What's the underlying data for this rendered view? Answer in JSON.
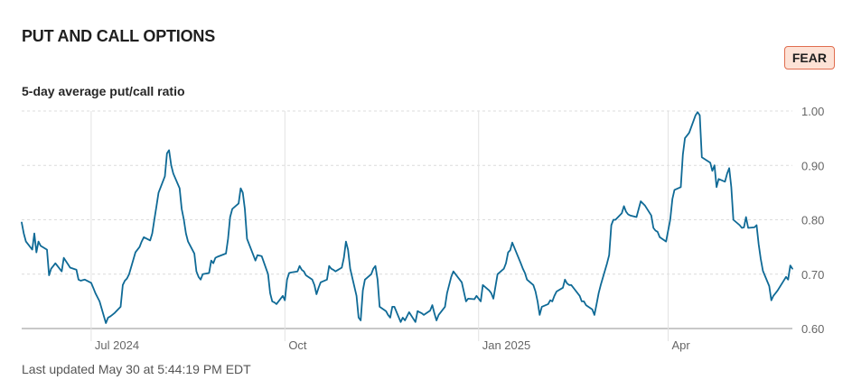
{
  "header": {
    "title": "PUT AND CALL OPTIONS",
    "badge": "FEAR",
    "badge_color": "#fde2d6",
    "badge_border": "#e06d4f"
  },
  "footer": {
    "last_updated": "Last updated May 30 at 5:44:19 PM EDT"
  },
  "chart_data": {
    "type": "line",
    "title": "5-day average put/call ratio",
    "line_color": "#0f6a96",
    "ylim": [
      0.6,
      1.0
    ],
    "yticks": [
      {
        "value": 1.0,
        "label": "1.00"
      },
      {
        "value": 0.9,
        "label": "0.90"
      },
      {
        "value": 0.8,
        "label": "0.80"
      },
      {
        "value": 0.7,
        "label": "0.70"
      },
      {
        "value": 0.6,
        "label": "0.60"
      }
    ],
    "xlim": [
      "2024-05-29",
      "2025-05-30"
    ],
    "xticks": [
      {
        "date": "2024-07-01",
        "label": "Jul 2024"
      },
      {
        "date": "2024-10-01",
        "label": "Oct"
      },
      {
        "date": "2025-01-01",
        "label": "Jan 2025"
      },
      {
        "date": "2025-04-01",
        "label": "Apr"
      }
    ],
    "grid": "horizontal dashed, vertical at month ticks",
    "series": [
      {
        "x": [
          "2024-05-29",
          "2024-05-30",
          "2024-05-31",
          "2024-06-03",
          "2024-06-04",
          "2024-06-05",
          "2024-06-06",
          "2024-06-07",
          "2024-06-10",
          "2024-06-11",
          "2024-06-12",
          "2024-06-13",
          "2024-06-14",
          "2024-06-17",
          "2024-06-18",
          "2024-06-20",
          "2024-06-21",
          "2024-06-24",
          "2024-06-25",
          "2024-06-26",
          "2024-06-27",
          "2024-06-28",
          "2024-07-01",
          "2024-07-02",
          "2024-07-03",
          "2024-07-05",
          "2024-07-08",
          "2024-07-09",
          "2024-07-10",
          "2024-07-11",
          "2024-07-12",
          "2024-07-15",
          "2024-07-16",
          "2024-07-17",
          "2024-07-18",
          "2024-07-19",
          "2024-07-22",
          "2024-07-23",
          "2024-07-24",
          "2024-07-25",
          "2024-07-26",
          "2024-07-29",
          "2024-07-30",
          "2024-07-31",
          "2024-08-01",
          "2024-08-02",
          "2024-08-05",
          "2024-08-06",
          "2024-08-07",
          "2024-08-08",
          "2024-08-09",
          "2024-08-12",
          "2024-08-13",
          "2024-08-14",
          "2024-08-15",
          "2024-08-16",
          "2024-08-19",
          "2024-08-20",
          "2024-08-21",
          "2024-08-22",
          "2024-08-23",
          "2024-08-26",
          "2024-08-27",
          "2024-08-28",
          "2024-08-29",
          "2024-08-30",
          "2024-09-03",
          "2024-09-04",
          "2024-09-05",
          "2024-09-06",
          "2024-09-09",
          "2024-09-10",
          "2024-09-11",
          "2024-09-12",
          "2024-09-13",
          "2024-09-16",
          "2024-09-17",
          "2024-09-18",
          "2024-09-19",
          "2024-09-20",
          "2024-09-23",
          "2024-09-24",
          "2024-09-25",
          "2024-09-26",
          "2024-09-27",
          "2024-09-30",
          "2024-10-01",
          "2024-10-02",
          "2024-10-03",
          "2024-10-04",
          "2024-10-07",
          "2024-10-08",
          "2024-10-09",
          "2024-10-10",
          "2024-10-11",
          "2024-10-14",
          "2024-10-15",
          "2024-10-16",
          "2024-10-17",
          "2024-10-18",
          "2024-10-21",
          "2024-10-22",
          "2024-10-23",
          "2024-10-24",
          "2024-10-25",
          "2024-10-28",
          "2024-10-29",
          "2024-10-30",
          "2024-10-31",
          "2024-11-01",
          "2024-11-04",
          "2024-11-05",
          "2024-11-06",
          "2024-11-07",
          "2024-11-08",
          "2024-11-11",
          "2024-11-12",
          "2024-11-13",
          "2024-11-14",
          "2024-11-15",
          "2024-11-18",
          "2024-11-19",
          "2024-11-20",
          "2024-11-21",
          "2024-11-22",
          "2024-11-25",
          "2024-11-26",
          "2024-11-27",
          "2024-11-29",
          "2024-12-02",
          "2024-12-03",
          "2024-12-04",
          "2024-12-05",
          "2024-12-06",
          "2024-12-09",
          "2024-12-10",
          "2024-12-11",
          "2024-12-12",
          "2024-12-13",
          "2024-12-16",
          "2024-12-17",
          "2024-12-18",
          "2024-12-19",
          "2024-12-20",
          "2024-12-23",
          "2024-12-24",
          "2024-12-26",
          "2024-12-27",
          "2024-12-30",
          "2024-12-31",
          "2025-01-02",
          "2025-01-03",
          "2025-01-06",
          "2025-01-07",
          "2025-01-08",
          "2025-01-10",
          "2025-01-13",
          "2025-01-14",
          "2025-01-15",
          "2025-01-16",
          "2025-01-17",
          "2025-01-21",
          "2025-01-22",
          "2025-01-23",
          "2025-01-24",
          "2025-01-27",
          "2025-01-28",
          "2025-01-29",
          "2025-01-30",
          "2025-01-31",
          "2025-02-03",
          "2025-02-04",
          "2025-02-05",
          "2025-02-06",
          "2025-02-07",
          "2025-02-10",
          "2025-02-11",
          "2025-02-12",
          "2025-02-13",
          "2025-02-14",
          "2025-02-18",
          "2025-02-19",
          "2025-02-20",
          "2025-02-21",
          "2025-02-24",
          "2025-02-25",
          "2025-02-26",
          "2025-02-27",
          "2025-02-28",
          "2025-03-03",
          "2025-03-04",
          "2025-03-05",
          "2025-03-06",
          "2025-03-07",
          "2025-03-10",
          "2025-03-11",
          "2025-03-12",
          "2025-03-13",
          "2025-03-14",
          "2025-03-17",
          "2025-03-18",
          "2025-03-19",
          "2025-03-20",
          "2025-03-21",
          "2025-03-24",
          "2025-03-25",
          "2025-03-26",
          "2025-03-27",
          "2025-03-28",
          "2025-03-31",
          "2025-04-01",
          "2025-04-02",
          "2025-04-03",
          "2025-04-04",
          "2025-04-07",
          "2025-04-08",
          "2025-04-09",
          "2025-04-10",
          "2025-04-11",
          "2025-04-14",
          "2025-04-15",
          "2025-04-16",
          "2025-04-17",
          "2025-04-21",
          "2025-04-22",
          "2025-04-23",
          "2025-04-24",
          "2025-04-25",
          "2025-04-28",
          "2025-04-29",
          "2025-04-30",
          "2025-05-01",
          "2025-05-02",
          "2025-05-05",
          "2025-05-06",
          "2025-05-07",
          "2025-05-08",
          "2025-05-09",
          "2025-05-12",
          "2025-05-13",
          "2025-05-14",
          "2025-05-15",
          "2025-05-16",
          "2025-05-19",
          "2025-05-20",
          "2025-05-21",
          "2025-05-22",
          "2025-05-23",
          "2025-05-27",
          "2025-05-28",
          "2025-05-29",
          "2025-05-30"
        ],
        "y": [
          0.795,
          0.775,
          0.76,
          0.745,
          0.775,
          0.74,
          0.76,
          0.752,
          0.745,
          0.698,
          0.71,
          0.715,
          0.72,
          0.705,
          0.73,
          0.718,
          0.712,
          0.708,
          0.69,
          0.688,
          0.689,
          0.69,
          0.684,
          0.675,
          0.665,
          0.65,
          0.61,
          0.62,
          0.622,
          0.625,
          0.628,
          0.64,
          0.68,
          0.688,
          0.692,
          0.7,
          0.74,
          0.745,
          0.75,
          0.76,
          0.768,
          0.762,
          0.775,
          0.8,
          0.825,
          0.85,
          0.88,
          0.922,
          0.928,
          0.9,
          0.885,
          0.858,
          0.82,
          0.8,
          0.775,
          0.76,
          0.738,
          0.705,
          0.695,
          0.69,
          0.7,
          0.702,
          0.725,
          0.72,
          0.73,
          0.732,
          0.738,
          0.765,
          0.805,
          0.82,
          0.83,
          0.858,
          0.85,
          0.82,
          0.765,
          0.735,
          0.725,
          0.735,
          0.734,
          0.733,
          0.7,
          0.665,
          0.65,
          0.648,
          0.645,
          0.66,
          0.652,
          0.69,
          0.702,
          0.703,
          0.705,
          0.715,
          0.708,
          0.705,
          0.698,
          0.69,
          0.68,
          0.663,
          0.675,
          0.685,
          0.69,
          0.715,
          0.71,
          0.708,
          0.705,
          0.712,
          0.73,
          0.76,
          0.745,
          0.71,
          0.66,
          0.62,
          0.615,
          0.67,
          0.69,
          0.7,
          0.71,
          0.715,
          0.69,
          0.64,
          0.632,
          0.625,
          0.62,
          0.64,
          0.64,
          0.612,
          0.62,
          0.615,
          0.63,
          0.612,
          0.632,
          0.63,
          0.628,
          0.625,
          0.633,
          0.643,
          0.628,
          0.615,
          0.625,
          0.64,
          0.665,
          0.68,
          0.695,
          0.705,
          0.69,
          0.685,
          0.65,
          0.655,
          0.654,
          0.66,
          0.65,
          0.68,
          0.67,
          0.665,
          0.655,
          0.7,
          0.71,
          0.72,
          0.74,
          0.744,
          0.758,
          0.72,
          0.71,
          0.702,
          0.69,
          0.68,
          0.668,
          0.65,
          0.625,
          0.64,
          0.645,
          0.652,
          0.65,
          0.66,
          0.668,
          0.675,
          0.69,
          0.683,
          0.68,
          0.68,
          0.66,
          0.65,
          0.65,
          0.643,
          0.635,
          0.625,
          0.645,
          0.665,
          0.68,
          0.72,
          0.735,
          0.79,
          0.8,
          0.8,
          0.812,
          0.825,
          0.815,
          0.81,
          0.808,
          0.805,
          0.82,
          0.834,
          0.83,
          0.826,
          0.808,
          0.785,
          0.78,
          0.778,
          0.768,
          0.76,
          0.78,
          0.8,
          0.838,
          0.855,
          0.86,
          0.92,
          0.95,
          0.955,
          0.96,
          0.992,
          0.998,
          0.992,
          0.915,
          0.905,
          0.89,
          0.9,
          0.86,
          0.875,
          0.87,
          0.885,
          0.895,
          0.86,
          0.8,
          0.79,
          0.785,
          0.786,
          0.805,
          0.785,
          0.786,
          0.79,
          0.755,
          0.728,
          0.706,
          0.678,
          0.652,
          0.66,
          0.665,
          0.67,
          0.695,
          0.69,
          0.716,
          0.71
        ]
      }
    ]
  }
}
